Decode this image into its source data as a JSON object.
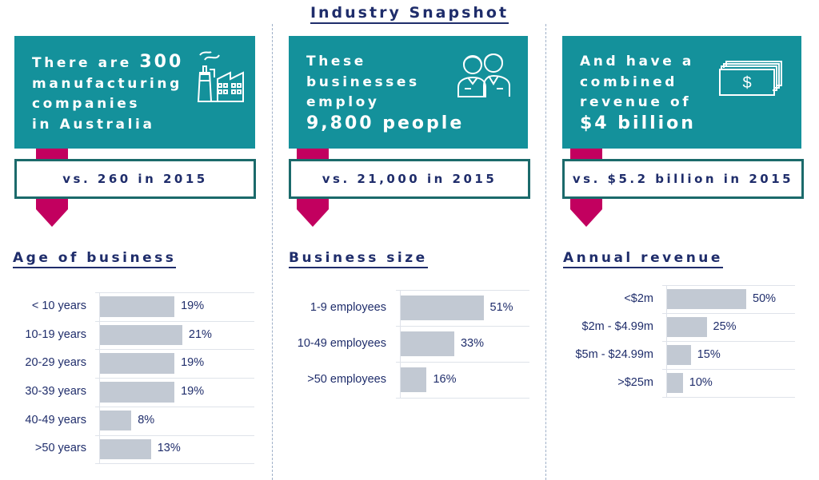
{
  "title": "Industry Snapshot",
  "colors": {
    "teal": "#14919b",
    "border": "#1b6a6b",
    "accent": "#c2005f",
    "navy": "#1f2d6b",
    "bar": "#c2c9d3"
  },
  "cards": [
    {
      "line1": "There are ",
      "big1": "300",
      "line2": "manufacturing",
      "line3": "companies",
      "line4": "in Australia",
      "comparison": "vs. 260 in 2015",
      "icon": "factory-icon"
    },
    {
      "line1": "These",
      "line2": "businesses",
      "line3": "employ",
      "big": "9,800 people",
      "comparison": "vs. 21,000 in 2015",
      "icon": "people-icon"
    },
    {
      "line1": "And have a",
      "line2": "combined",
      "line3": "revenue of",
      "big": "$4 billion",
      "comparison": "vs. $5.2 billion in 2015",
      "icon": "money-icon",
      "icon_symbol": "$"
    }
  ],
  "chart_data": [
    {
      "type": "bar",
      "orientation": "horizontal",
      "title": "Age of business",
      "categories": [
        "< 10 years",
        "10-19 years",
        "20-29 years",
        "30-39 years",
        "40-49 years",
        ">50 years"
      ],
      "values": [
        19,
        21,
        19,
        19,
        8,
        13
      ],
      "labels": [
        "19%",
        "21%",
        "19%",
        "19%",
        "8%",
        "13%"
      ],
      "unit": "%"
    },
    {
      "type": "bar",
      "orientation": "horizontal",
      "title": "Business size",
      "categories": [
        "1-9 employees",
        "10-49 employees",
        ">50 employees"
      ],
      "values": [
        51,
        33,
        16
      ],
      "labels": [
        "51%",
        "33%",
        "16%"
      ],
      "unit": "%"
    },
    {
      "type": "bar",
      "orientation": "horizontal",
      "title": "Annual revenue",
      "categories": [
        "<$2m",
        "$2m - $4.99m",
        "$5m - $24.99m",
        ">$25m"
      ],
      "values": [
        50,
        25,
        15,
        10
      ],
      "labels": [
        "50%",
        "25%",
        "15%",
        "10%"
      ],
      "unit": "%"
    }
  ]
}
